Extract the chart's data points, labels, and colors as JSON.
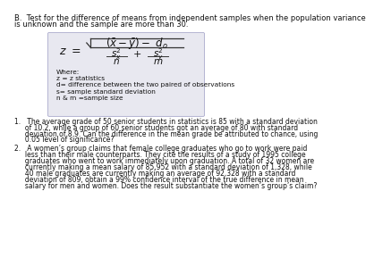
{
  "bg_color": "#ffffff",
  "header_text": "B.  Test for the difference of means from independent samples when the population variance\nis unknown and the sample are more than 30.",
  "formula_box_color": "#e8e8f0",
  "where_lines": [
    "Where:",
    "z = z statistics",
    "d= difference between the two paired of observations",
    "s= sample standard deviation",
    "n & m =sample size"
  ],
  "problem1": "1.   The average grade of 50 senior students in statistics is 85 with a standard deviation\n     of 10.2, while a group of 60 senior students got an average of 80 with standard\n     deviation of 8.9. Can the difference in the mean grade be attributed to chance, using\n     0.05 level of significance?",
  "problem2": "2.   A women’s group claims that female college graduates who go to work were paid\n     less than their male counterparts. They cite the results of a study of 1995 college\n     graduates who went to work immediately upon graduation. A total of 32 women are\n     currently making a mean salary of 85,952 with a standard deviation of 1,328, while\n     40 male graduates are currently making an average of 92,328 with a standard\n     deviation of 809, obtain a 99% confidence interval of the true difference in mean\n     salary for men and women. Does the result substantiate the women’s group’s claim?"
}
